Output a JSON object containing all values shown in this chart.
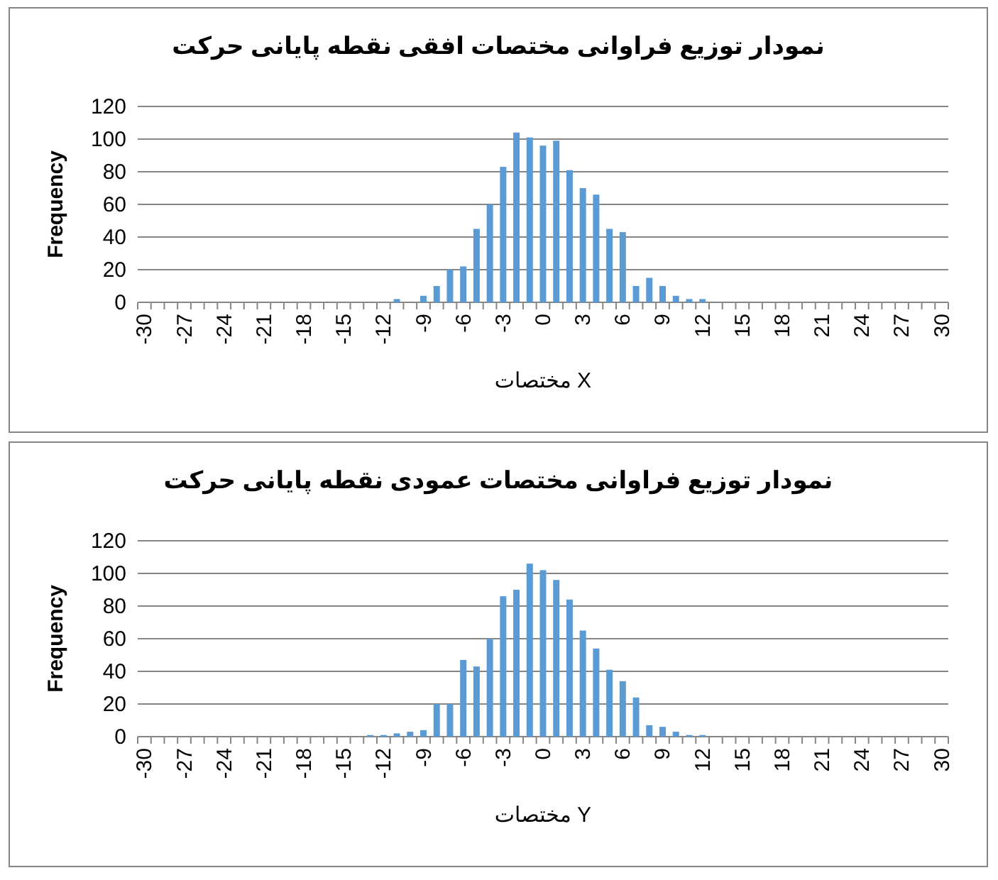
{
  "chart_data": [
    {
      "type": "bar",
      "title": "نمودار توزیع فراوانی مختصات افقی نقطه پایانی حرکت",
      "xlabel": "مختصات X",
      "ylabel": "Frequency",
      "categories": [
        "-30",
        null,
        null,
        "-27",
        null,
        null,
        "-24",
        null,
        null,
        "-21",
        null,
        null,
        "-18",
        null,
        null,
        "-15",
        null,
        null,
        "-12",
        null,
        null,
        "-9",
        null,
        null,
        "-6",
        null,
        null,
        "-3",
        null,
        null,
        "0",
        null,
        null,
        "3",
        null,
        null,
        "6",
        null,
        null,
        "9",
        null,
        null,
        "12",
        null,
        null,
        "15",
        null,
        null,
        "18",
        null,
        null,
        "21",
        null,
        null,
        "24",
        null,
        null,
        "27",
        null,
        null,
        "30"
      ],
      "values": [
        0,
        0,
        0,
        0,
        0,
        0,
        0,
        0,
        0,
        0,
        0,
        0,
        0,
        0,
        0,
        0,
        0,
        0,
        0,
        2,
        0,
        4,
        10,
        20,
        22,
        45,
        60,
        83,
        104,
        101,
        96,
        99,
        81,
        70,
        66,
        45,
        43,
        10,
        15,
        10,
        4,
        2,
        2,
        0,
        0,
        0,
        0,
        0,
        0,
        0,
        0,
        0,
        0,
        0,
        0,
        0,
        0,
        0,
        0,
        0,
        0
      ],
      "color": "#5b9bd5",
      "ylim": [
        0,
        120
      ],
      "yticks": [
        0,
        20,
        40,
        60,
        80,
        100,
        120
      ],
      "grid": "y"
    },
    {
      "type": "bar",
      "title": "نمودار توزیع فراوانی مختصات عمودی نقطه پایانی حرکت",
      "xlabel": "مختصات Y",
      "ylabel": "Frequency",
      "categories": [
        "-30",
        null,
        null,
        "-27",
        null,
        null,
        "-24",
        null,
        null,
        "-21",
        null,
        null,
        "-18",
        null,
        null,
        "-15",
        null,
        null,
        "-12",
        null,
        null,
        "-9",
        null,
        null,
        "-6",
        null,
        null,
        "-3",
        null,
        null,
        "0",
        null,
        null,
        "3",
        null,
        null,
        "6",
        null,
        null,
        "9",
        null,
        null,
        "12",
        null,
        null,
        "15",
        null,
        null,
        "18",
        null,
        null,
        "21",
        null,
        null,
        "24",
        null,
        null,
        "27",
        null,
        null,
        "30"
      ],
      "values": [
        0,
        0,
        0,
        0,
        0,
        0,
        0,
        0,
        0,
        0,
        0,
        0,
        0,
        0,
        0,
        0,
        0,
        1,
        1,
        2,
        3,
        4,
        20,
        20,
        47,
        43,
        60,
        86,
        90,
        106,
        102,
        96,
        84,
        65,
        54,
        41,
        34,
        24,
        7,
        6,
        3,
        1,
        1,
        0,
        0,
        0,
        0,
        0,
        0,
        0,
        0,
        0,
        0,
        0,
        0,
        0,
        0,
        0,
        0,
        0,
        0
      ],
      "color": "#5b9bd5",
      "ylim": [
        0,
        120
      ],
      "yticks": [
        0,
        20,
        40,
        60,
        80,
        100,
        120
      ],
      "grid": "y"
    }
  ]
}
